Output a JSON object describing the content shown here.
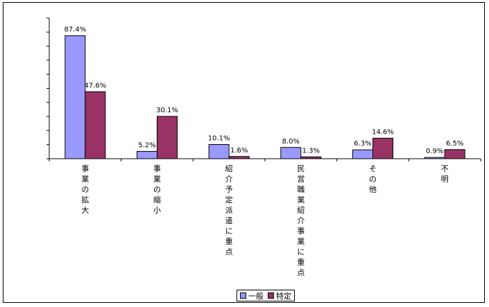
{
  "chart_data": {
    "type": "bar",
    "categories": [
      "事業の拡大",
      "事業の縮小",
      "紹介予定派遣に重点",
      "民営職業紹介事業に重点",
      "その他",
      "不明"
    ],
    "series": [
      {
        "name": "一般",
        "color": "#9999FF",
        "values": [
          87.4,
          5.2,
          10.1,
          8.0,
          6.3,
          0.9
        ],
        "labels": [
          "87.4%",
          "5.2%",
          "10.1%",
          "8.0%",
          "6.3%",
          "0.9%"
        ]
      },
      {
        "name": "特定",
        "color": "#993366",
        "values": [
          47.6,
          30.1,
          1.6,
          1.3,
          14.6,
          6.5
        ],
        "labels": [
          "47.6%",
          "30.1%",
          "1.6%",
          "1.3%",
          "14.6%",
          "6.5%"
        ]
      }
    ],
    "ylim": [
      0,
      100
    ],
    "grid": false,
    "legend": "bottom",
    "title": "",
    "xlabel": "",
    "ylabel": ""
  }
}
